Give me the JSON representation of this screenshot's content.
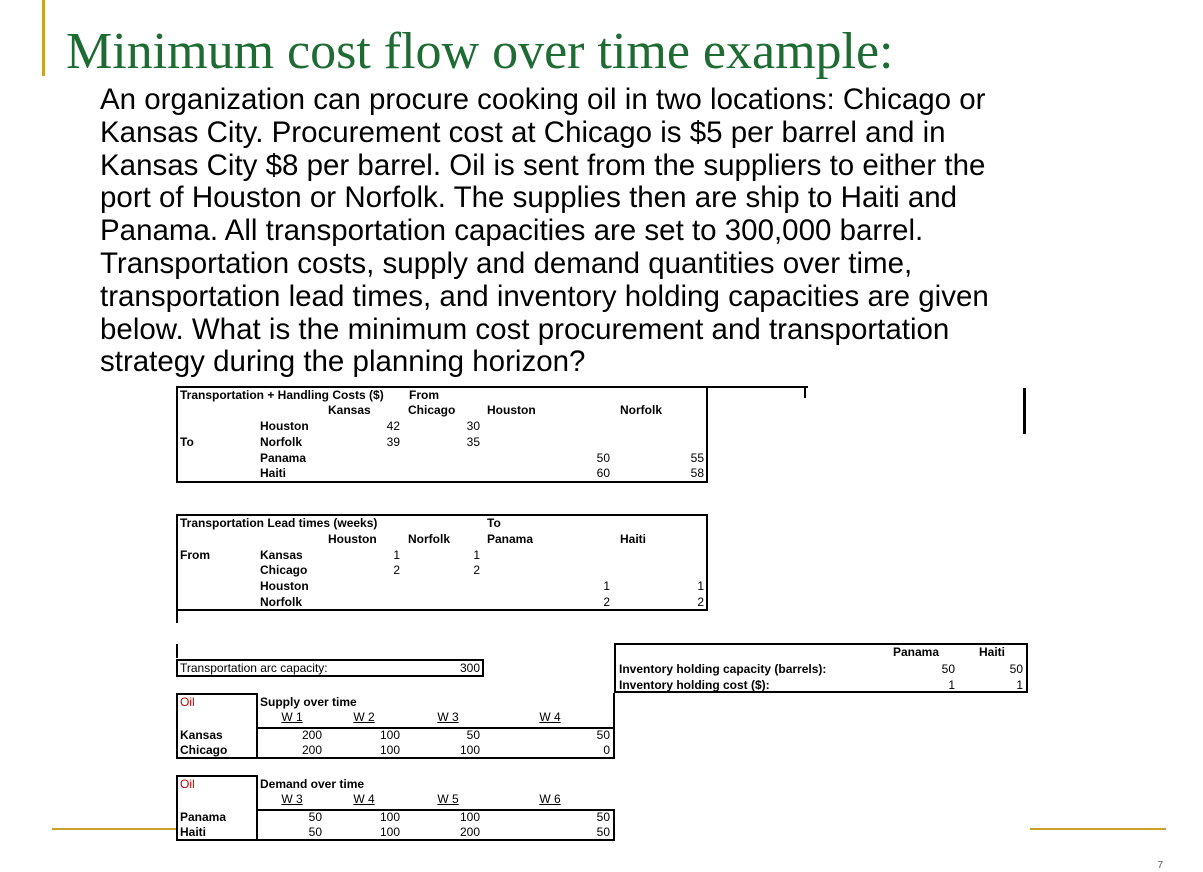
{
  "slide": {
    "title": "Minimum cost flow over time example:",
    "body_lines": [
      "An organization can procure cooking oil in two locations: Chicago or",
      "Kansas City. Procurement cost at Chicago is $5 per barrel and in",
      "Kansas City $8 per barrel. Oil is sent from the suppliers to either the",
      "port of Houston or Norfolk. The supplies then are ship to Haiti and",
      "Panama. All transportation capacities are set to 300,000 barrel.",
      "Transportation costs, supply and demand quantities over time,",
      "transportation lead times, and inventory holding capacities are given",
      "below. What is the minimum cost procurement and transportation",
      "strategy during the planning horizon?"
    ],
    "page_number": "7"
  },
  "costs": {
    "header": "Transportation + Handling Costs ($)",
    "from": "From",
    "to": "To",
    "cols": [
      "Kansas",
      "Chicago",
      "Houston",
      "Norfolk"
    ],
    "rows": [
      {
        "label": "Houston",
        "values": [
          "42",
          "30",
          "",
          ""
        ]
      },
      {
        "label": "Norfolk",
        "values": [
          "39",
          "35",
          "",
          ""
        ]
      },
      {
        "label": "Panama",
        "values": [
          "",
          "",
          "50",
          "55"
        ]
      },
      {
        "label": "Haiti",
        "values": [
          "",
          "",
          "60",
          "58"
        ]
      }
    ]
  },
  "lead": {
    "header": "Transportation Lead times (weeks)",
    "from": "From",
    "to": "To",
    "cols": [
      "Houston",
      "Norfolk",
      "Panama",
      "Haiti"
    ],
    "rows": [
      {
        "label": "Kansas",
        "values": [
          "1",
          "1",
          "",
          ""
        ]
      },
      {
        "label": "Chicago",
        "values": [
          "2",
          "2",
          "",
          ""
        ]
      },
      {
        "label": "Houston",
        "values": [
          "",
          "",
          "1",
          "1"
        ]
      },
      {
        "label": "Norfolk",
        "values": [
          "",
          "",
          "2",
          "2"
        ]
      }
    ]
  },
  "arc": {
    "label": "Transportation arc capacity:",
    "value": "300"
  },
  "inventory": {
    "cols": [
      "Panama",
      "Haiti"
    ],
    "rows": [
      {
        "label": "Inventory holding capacity (barrels):",
        "values": [
          "50",
          "50"
        ]
      },
      {
        "label": "Inventory holding cost ($):",
        "values": [
          "1",
          "1"
        ]
      }
    ]
  },
  "supply": {
    "tag": "Oil",
    "title": "Supply over time",
    "weeks": [
      "W 1",
      "W 2",
      "W 3",
      "W 4"
    ],
    "rows": [
      {
        "label": "Kansas",
        "values": [
          "200",
          "100",
          "50",
          "50"
        ]
      },
      {
        "label": "Chicago",
        "values": [
          "200",
          "100",
          "100",
          "0"
        ]
      }
    ]
  },
  "demand": {
    "tag": "Oil",
    "title": "Demand over time",
    "weeks": [
      "W 3",
      "W 4",
      "W 5",
      "W 6"
    ],
    "rows": [
      {
        "label": "Panama",
        "values": [
          "50",
          "100",
          "100",
          "50"
        ]
      },
      {
        "label": "Haiti",
        "values": [
          "50",
          "100",
          "200",
          "50"
        ]
      }
    ]
  }
}
